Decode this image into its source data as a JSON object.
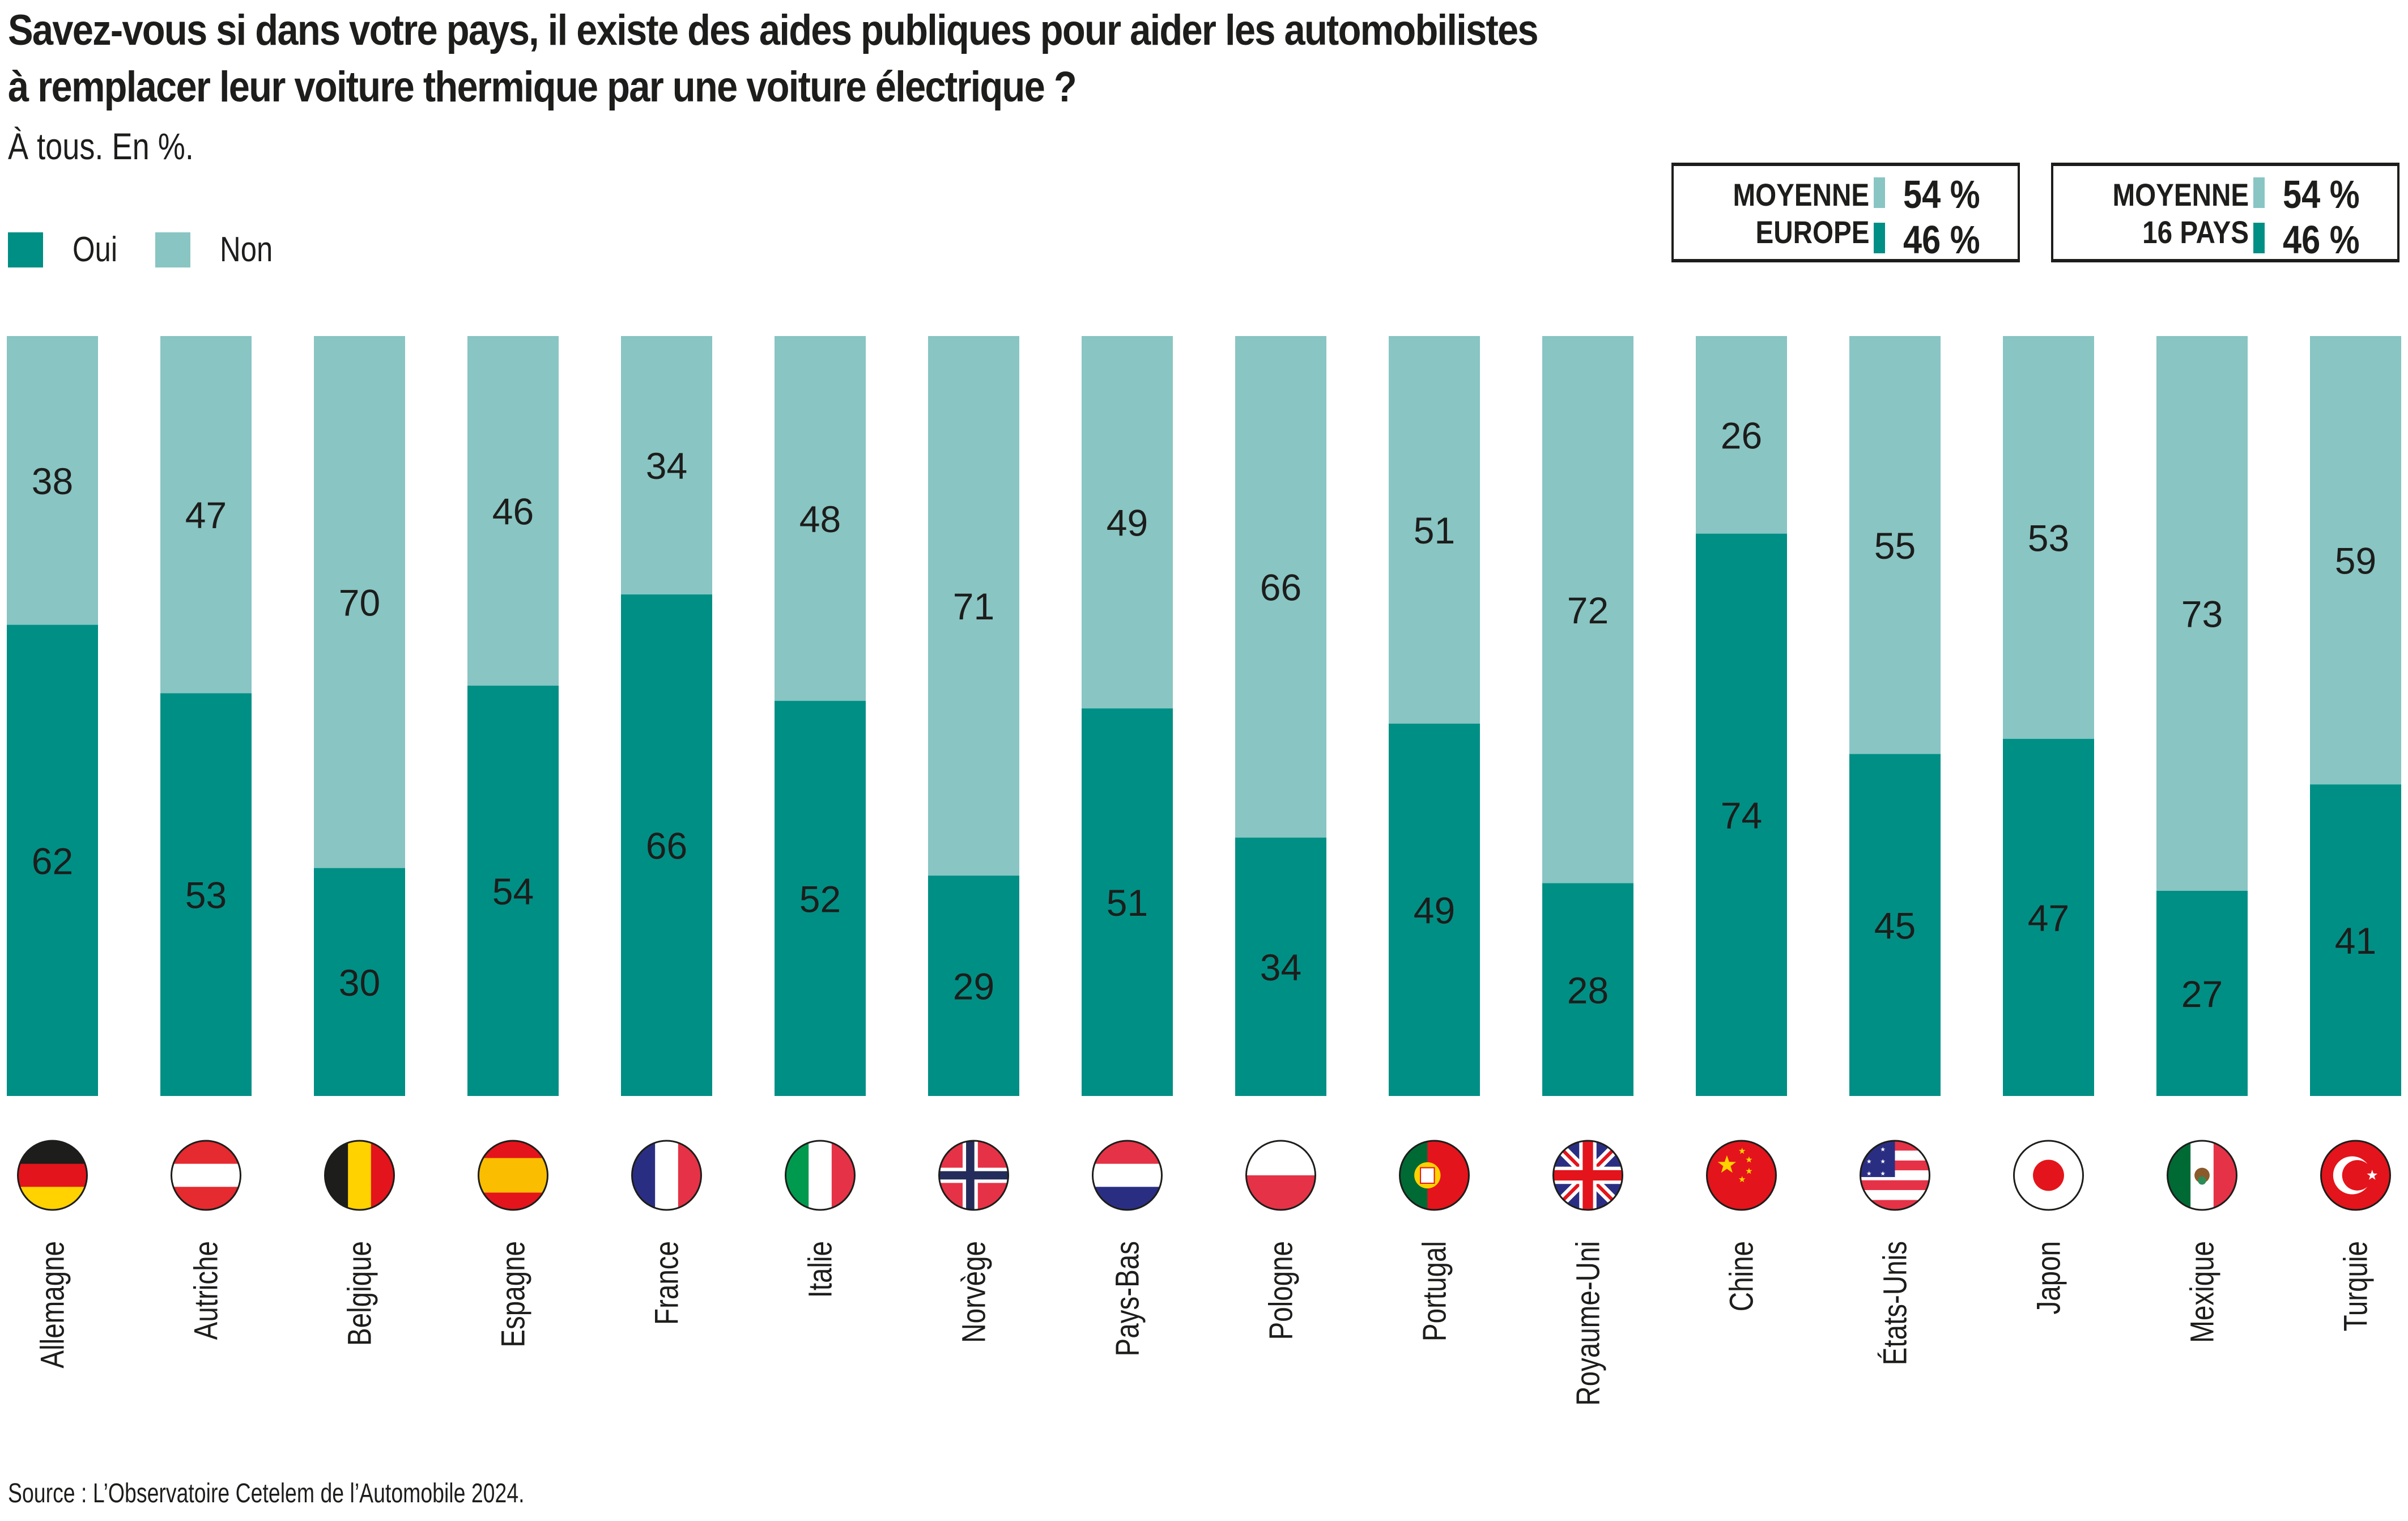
{
  "header": {
    "title_line1": "Savez-vous si dans votre pays, il existe des aides publiques pour aider les automobilistes",
    "title_line2": "à remplacer leur voiture thermique par une voiture électrique ?",
    "subtitle": "À tous. En %."
  },
  "legend": [
    {
      "label": "Oui",
      "color": "#008f85"
    },
    {
      "label": "Non",
      "color": "#88c5c3"
    }
  ],
  "averages": [
    {
      "label_line1": "MOYENNE",
      "label_line2": "EUROPE",
      "non": "54 %",
      "oui": "46 %"
    },
    {
      "label_line1": "MOYENNE",
      "label_line2": "16 PAYS",
      "non": "54 %",
      "oui": "46 %"
    }
  ],
  "colors": {
    "oui": "#008f85",
    "non": "#88c5c3",
    "text": "#1d1d1b"
  },
  "chart_data": {
    "type": "bar",
    "stacked": true,
    "orientation": "vertical",
    "title": "Savez-vous si dans votre pays, il existe des aides publiques pour aider les automobilistes à remplacer leur voiture thermique par une voiture électrique ?",
    "subtitle": "À tous. En %.",
    "xlabel": "",
    "ylabel": "",
    "ylim": [
      0,
      100
    ],
    "grid": false,
    "legend_position": "top-left",
    "categories": [
      "Allemagne",
      "Autriche",
      "Belgique",
      "Espagne",
      "France",
      "Italie",
      "Norvège",
      "Pays-Bas",
      "Pologne",
      "Portugal",
      "Royaume-Uni",
      "Chine",
      "États-Unis",
      "Japon",
      "Mexique",
      "Turquie"
    ],
    "flags": [
      "de",
      "at",
      "be",
      "es",
      "fr",
      "it",
      "no",
      "nl",
      "pl",
      "pt",
      "gb",
      "cn",
      "us",
      "jp",
      "mx",
      "tr"
    ],
    "series": [
      {
        "name": "Oui",
        "values": [
          62,
          53,
          30,
          54,
          66,
          52,
          29,
          51,
          34,
          49,
          28,
          74,
          45,
          47,
          27,
          41
        ]
      },
      {
        "name": "Non",
        "values": [
          38,
          47,
          70,
          46,
          34,
          48,
          71,
          49,
          66,
          51,
          72,
          26,
          55,
          53,
          73,
          59
        ]
      }
    ]
  },
  "footer": {
    "source": "Source : L’Observatoire Cetelem de l’Automobile 2024."
  }
}
